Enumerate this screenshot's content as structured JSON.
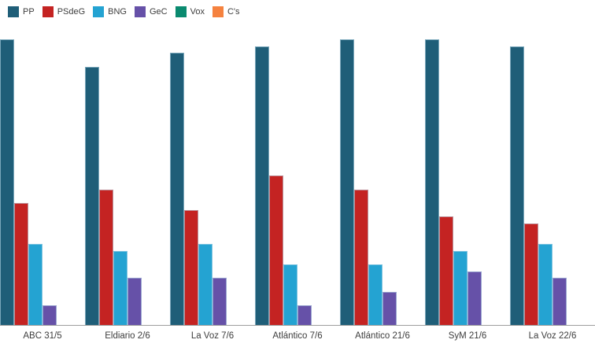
{
  "chart_data": {
    "type": "bar",
    "title": "",
    "xlabel": "",
    "ylabel": "",
    "categories": [
      "ABC 31/5",
      "Eldiario 2/6",
      "La Voz 7/6",
      "Atlántico 7/6",
      "Atlántico 21/6",
      "SyM 21/6",
      "La Voz 22/6"
    ],
    "series": [
      {
        "name": "PP",
        "color": "#1f5e78",
        "values": [
          42,
          38,
          40,
          41,
          42,
          42,
          41
        ]
      },
      {
        "name": "PSdeG",
        "color": "#c42322",
        "values": [
          18,
          20,
          17,
          22,
          20,
          16,
          15
        ]
      },
      {
        "name": "BNG",
        "color": "#24a3d2",
        "values": [
          12,
          11,
          12,
          9,
          9,
          11,
          12
        ]
      },
      {
        "name": "GeC",
        "color": "#6651a8",
        "values": [
          3,
          7,
          7,
          3,
          5,
          8,
          7
        ]
      },
      {
        "name": "Vox",
        "color": "#0a8a6f",
        "values": [
          0,
          0,
          0,
          0,
          0,
          0,
          0
        ]
      },
      {
        "name": "C's",
        "color": "#f5823f",
        "values": [
          0,
          0,
          0,
          0,
          0,
          0,
          0
        ]
      }
    ],
    "ylim": [
      0,
      44.3
    ],
    "grid": false,
    "legend_position": "top-left",
    "axis_line_color": "#9e9e9e"
  }
}
